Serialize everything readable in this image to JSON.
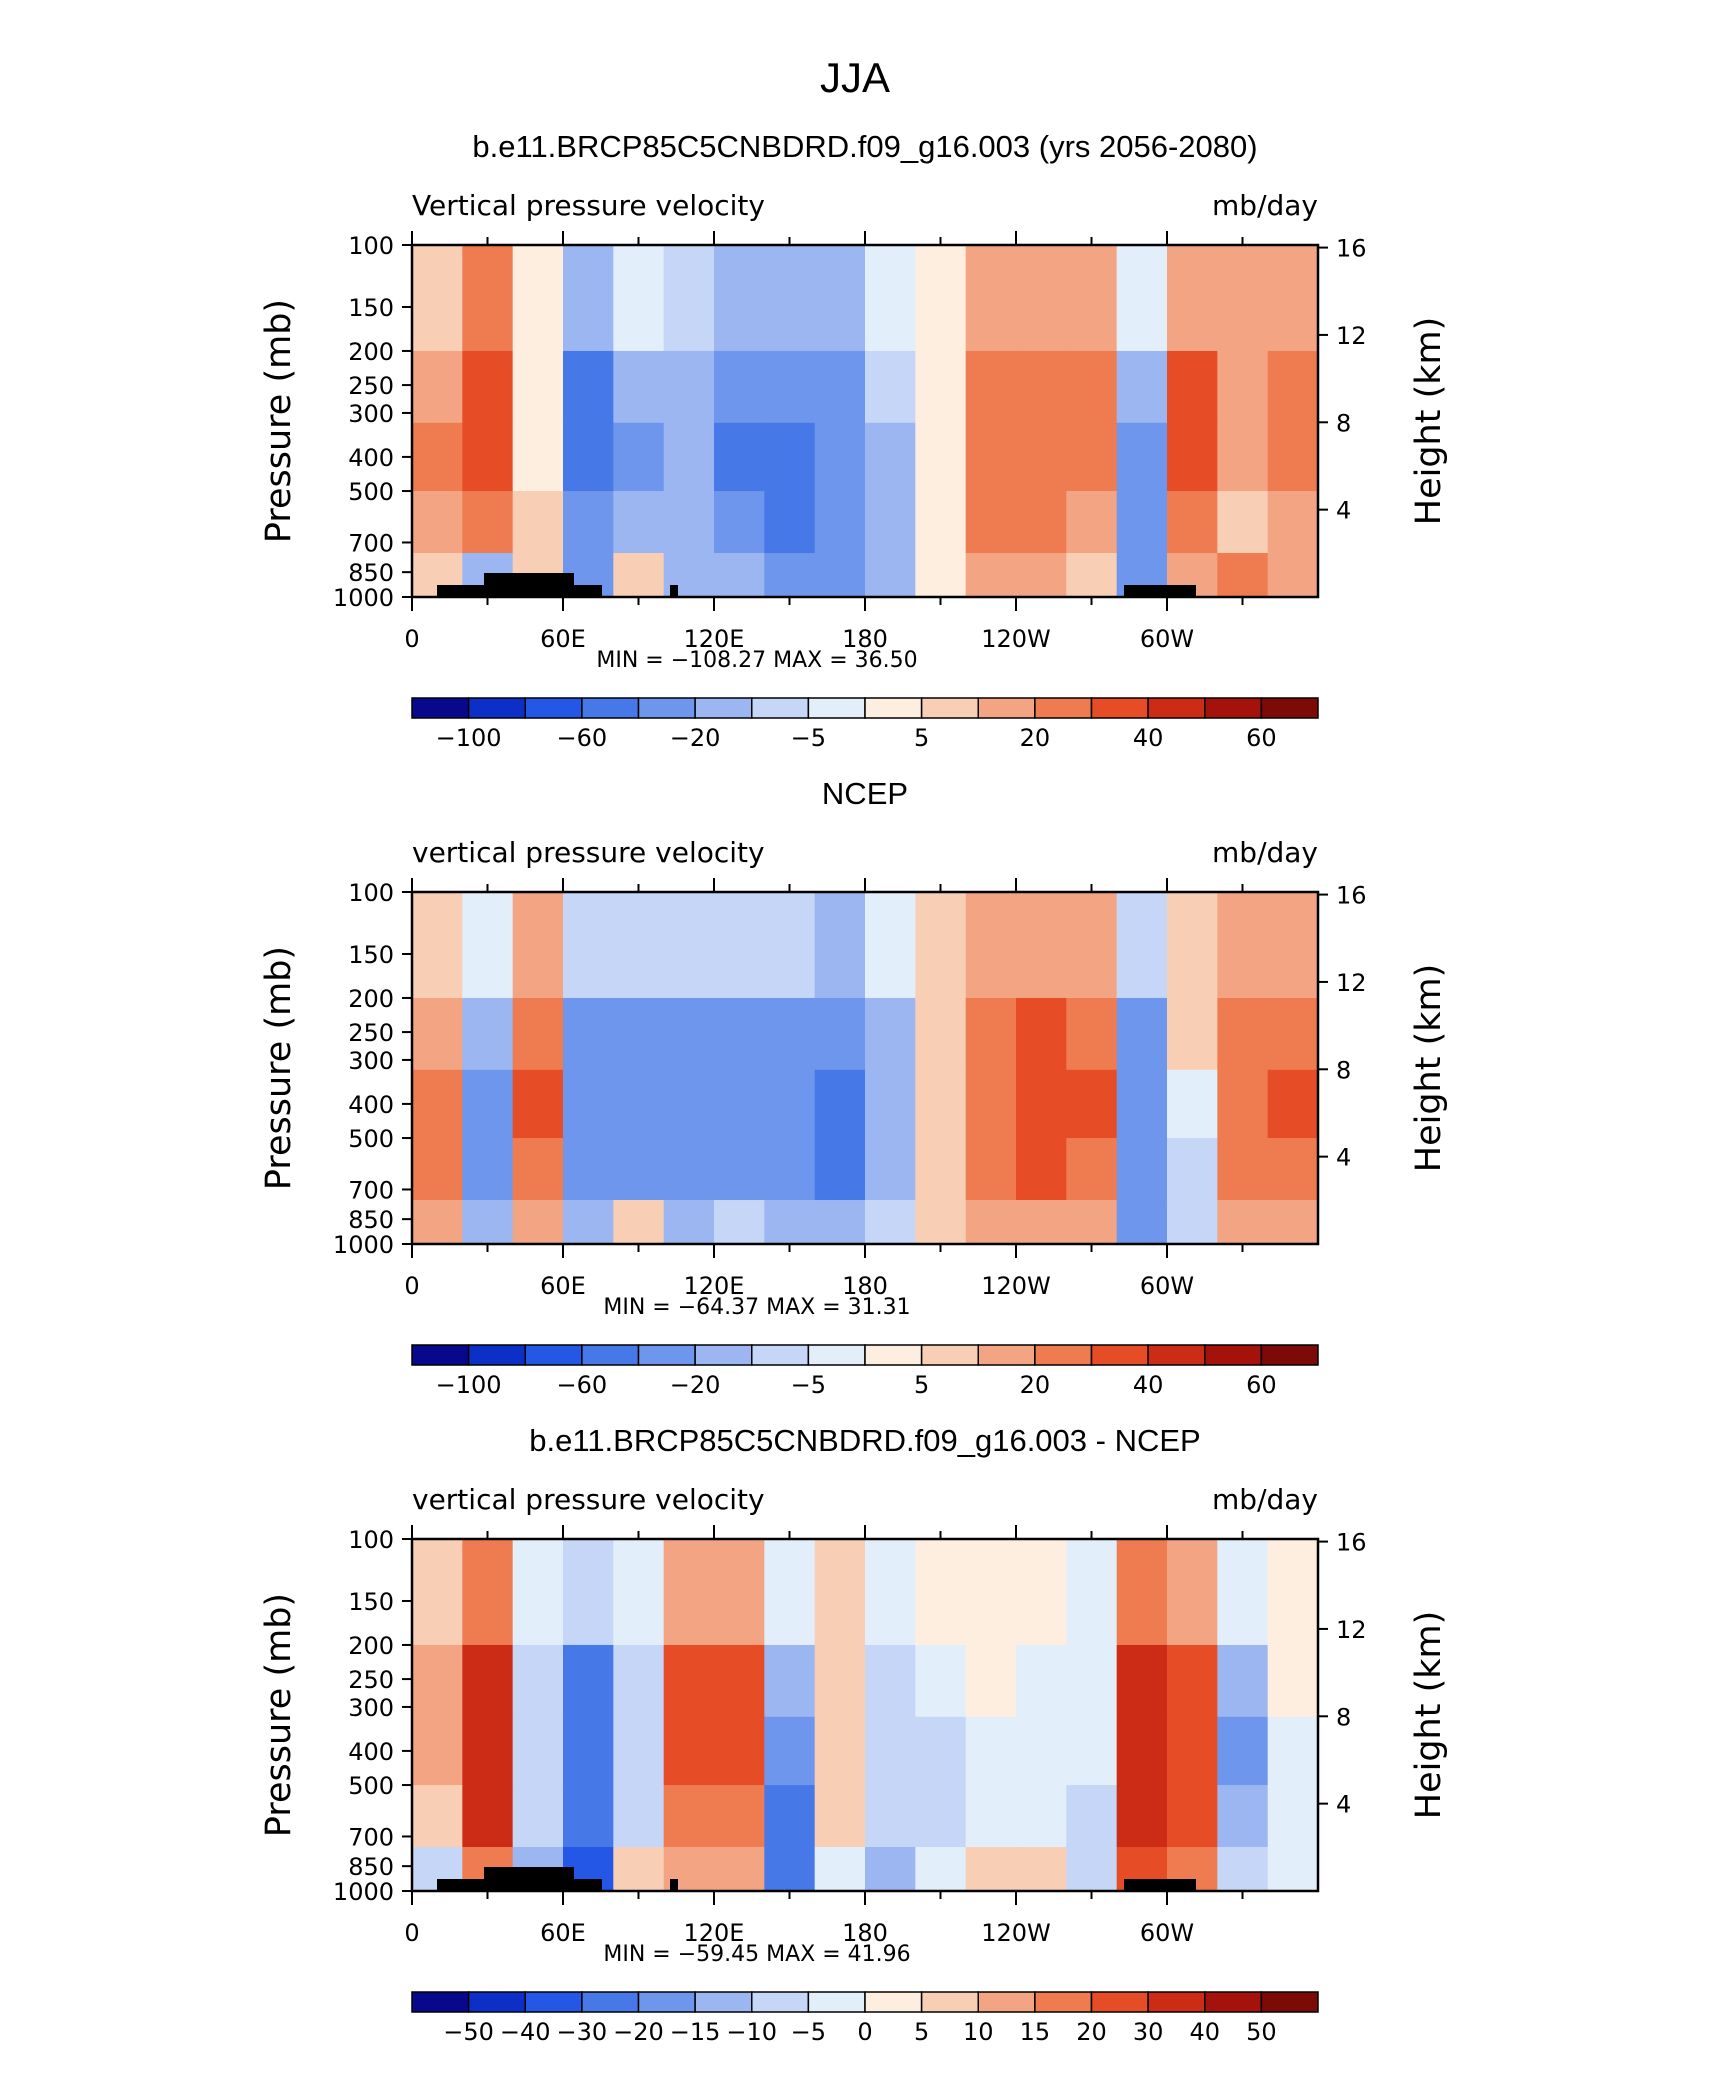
{
  "figure": {
    "season": "JJA",
    "colors": {
      "diverging_16": [
        "#08088c",
        "#0c2fc8",
        "#2557e6",
        "#4678e8",
        "#6e96ec",
        "#9bb6f0",
        "#c5d6f6",
        "#e3eefb",
        "#fdeee0",
        "#f8cfb5",
        "#f3a583",
        "#ef7b50",
        "#e64d26",
        "#cc2c16",
        "#a5120c",
        "#7c0a07"
      ]
    }
  },
  "panels": [
    {
      "id": "model",
      "title": "b.e11.BRCP85C5CNBDRD.f09_g16.003 (yrs 2056-2080)",
      "left_label": "Vertical pressure velocity",
      "right_label": "mb/day",
      "y_axis_label": "Pressure (mb)",
      "y2_axis_label": "Height (km)",
      "stats": "MIN = −108.27   MAX =   36.50",
      "show_topography": true,
      "colorbar_labels": [
        {
          "i": 1,
          "t": "−100"
        },
        {
          "i": 3,
          "t": "−60"
        },
        {
          "i": 5,
          "t": "−20"
        },
        {
          "i": 7,
          "t": "−5"
        },
        {
          "i": 9,
          "t": "5"
        },
        {
          "i": 11,
          "t": "20"
        },
        {
          "i": 13,
          "t": "40"
        },
        {
          "i": 15,
          "t": "60"
        }
      ]
    },
    {
      "id": "obs",
      "title": "NCEP",
      "left_label": "vertical pressure velocity",
      "right_label": "mb/day",
      "y_axis_label": "Pressure (mb)",
      "y2_axis_label": "Height (km)",
      "stats": "MIN =  −64.37   MAX =   31.31",
      "show_topography": false,
      "colorbar_labels": [
        {
          "i": 1,
          "t": "−100"
        },
        {
          "i": 3,
          "t": "−60"
        },
        {
          "i": 5,
          "t": "−20"
        },
        {
          "i": 7,
          "t": "−5"
        },
        {
          "i": 9,
          "t": "5"
        },
        {
          "i": 11,
          "t": "20"
        },
        {
          "i": 13,
          "t": "40"
        },
        {
          "i": 15,
          "t": "60"
        }
      ]
    },
    {
      "id": "diff",
      "title": "b.e11.BRCP85C5CNBDRD.f09_g16.003 - NCEP",
      "left_label": "vertical pressure velocity",
      "right_label": "mb/day",
      "y_axis_label": "Pressure (mb)",
      "y2_axis_label": "Height (km)",
      "stats": "MIN =  −59.45   MAX =   41.96",
      "show_topography": true,
      "colorbar_labels": [
        {
          "i": 1,
          "t": "−50"
        },
        {
          "i": 2,
          "t": "−40"
        },
        {
          "i": 3,
          "t": "−30"
        },
        {
          "i": 4,
          "t": "−20"
        },
        {
          "i": 5,
          "t": "−15"
        },
        {
          "i": 6,
          "t": "−10"
        },
        {
          "i": 7,
          "t": "−5"
        },
        {
          "i": 8,
          "t": "0"
        },
        {
          "i": 9,
          "t": "5"
        },
        {
          "i": 10,
          "t": "10"
        },
        {
          "i": 11,
          "t": "15"
        },
        {
          "i": 12,
          "t": "20"
        },
        {
          "i": 13,
          "t": "30"
        },
        {
          "i": 14,
          "t": "40"
        },
        {
          "i": 15,
          "t": "50"
        }
      ]
    }
  ],
  "chart_data": [
    {
      "type": "heatmap",
      "title": "b.e11.BRCP85C5CNBDRD.f09_g16.003 (yrs 2056-2080)",
      "variable": "Vertical pressure velocity",
      "units": "mb/day",
      "xlabel": "",
      "ylabel": "Pressure (mb)",
      "y2label": "Height (km)",
      "x_ticks": [
        "0",
        "60E",
        "120E",
        "180",
        "120W",
        "60W"
      ],
      "y_ticks": [
        100,
        150,
        200,
        250,
        300,
        400,
        500,
        700,
        850,
        1000
      ],
      "y2_ticks": [
        4,
        8,
        12,
        16
      ],
      "y_scale": "log",
      "ylim": [
        1000,
        100
      ],
      "min": -108.27,
      "max": 36.5,
      "value_grid": {
        "lon": [
          0,
          20,
          40,
          60,
          80,
          100,
          120,
          140,
          160,
          180,
          200,
          220,
          240,
          260,
          280,
          300,
          320,
          340
        ],
        "levels": [
          150,
          250,
          400,
          600,
          850
        ],
        "values": [
          [
            5,
            20,
            3,
            -15,
            -5,
            -10,
            -20,
            -20,
            -15,
            -5,
            3,
            15,
            15,
            15,
            -5,
            15,
            10,
            15
          ],
          [
            15,
            30,
            2,
            -60,
            -20,
            -15,
            -40,
            -40,
            -30,
            -10,
            2,
            20,
            25,
            20,
            -20,
            30,
            10,
            20
          ],
          [
            20,
            35,
            3,
            -55,
            -25,
            -20,
            -50,
            -50,
            -40,
            -20,
            3,
            25,
            25,
            20,
            -25,
            30,
            10,
            20
          ],
          [
            15,
            20,
            5,
            -40,
            -20,
            -20,
            -40,
            -45,
            -40,
            -20,
            3,
            20,
            20,
            15,
            -30,
            20,
            5,
            15
          ],
          [
            5,
            -20,
            5,
            -30,
            5,
            -20,
            -20,
            -30,
            -30,
            -15,
            3,
            10,
            10,
            5,
            -40,
            10,
            20,
            10
          ]
        ]
      }
    },
    {
      "type": "heatmap",
      "title": "NCEP",
      "variable": "vertical pressure velocity",
      "units": "mb/day",
      "xlabel": "",
      "ylabel": "Pressure (mb)",
      "y2label": "Height (km)",
      "x_ticks": [
        "0",
        "60E",
        "120E",
        "180",
        "120W",
        "60W"
      ],
      "y_ticks": [
        100,
        150,
        200,
        250,
        300,
        400,
        500,
        700,
        850,
        1000
      ],
      "y2_ticks": [
        4,
        8,
        12,
        16
      ],
      "y_scale": "log",
      "ylim": [
        1000,
        100
      ],
      "min": -64.37,
      "max": 31.31,
      "value_grid": {
        "lon": [
          0,
          20,
          40,
          60,
          80,
          100,
          120,
          140,
          160,
          180,
          200,
          220,
          240,
          260,
          280,
          300,
          320,
          340
        ],
        "levels": [
          150,
          250,
          400,
          600,
          850
        ],
        "values": [
          [
            5,
            -5,
            10,
            -10,
            -10,
            -10,
            -10,
            -10,
            -15,
            -5,
            5,
            10,
            15,
            10,
            -10,
            5,
            10,
            10
          ],
          [
            15,
            -15,
            25,
            -30,
            -30,
            -30,
            -30,
            -30,
            -40,
            -15,
            5,
            20,
            30,
            25,
            -30,
            5,
            20,
            25
          ],
          [
            20,
            -25,
            30,
            -40,
            -35,
            -40,
            -30,
            -35,
            -50,
            -20,
            5,
            25,
            35,
            30,
            -40,
            -5,
            25,
            30
          ],
          [
            20,
            -30,
            25,
            -35,
            -30,
            -30,
            -25,
            -30,
            -45,
            -20,
            5,
            20,
            30,
            25,
            -40,
            -10,
            20,
            25
          ],
          [
            10,
            -20,
            15,
            -20,
            5,
            -15,
            -10,
            -20,
            -20,
            -10,
            5,
            10,
            15,
            15,
            -25,
            -10,
            10,
            15
          ]
        ]
      }
    },
    {
      "type": "heatmap",
      "title": "b.e11.BRCP85C5CNBDRD.f09_g16.003 - NCEP",
      "variable": "vertical pressure velocity",
      "units": "mb/day",
      "xlabel": "",
      "ylabel": "Pressure (mb)",
      "y2label": "Height (km)",
      "x_ticks": [
        "0",
        "60E",
        "120E",
        "180",
        "120W",
        "60W"
      ],
      "y_ticks": [
        100,
        150,
        200,
        250,
        300,
        400,
        500,
        700,
        850,
        1000
      ],
      "y2_ticks": [
        4,
        8,
        12,
        16
      ],
      "y_scale": "log",
      "ylim": [
        1000,
        100
      ],
      "min": -59.45,
      "max": 41.96,
      "value_grid": {
        "lon": [
          0,
          20,
          40,
          60,
          80,
          100,
          120,
          140,
          160,
          180,
          200,
          220,
          240,
          260,
          280,
          300,
          320,
          340
        ],
        "levels": [
          150,
          250,
          400,
          600,
          850
        ],
        "values": [
          [
            5,
            15,
            -5,
            -10,
            -5,
            10,
            10,
            -5,
            5,
            -5,
            0,
            0,
            0,
            -5,
            15,
            10,
            -5,
            0
          ],
          [
            10,
            30,
            -10,
            -25,
            -10,
            20,
            20,
            -15,
            5,
            -10,
            -5,
            0,
            -5,
            -5,
            30,
            20,
            -15,
            0
          ],
          [
            10,
            35,
            -10,
            -30,
            -10,
            20,
            25,
            -20,
            5,
            -10,
            -10,
            -5,
            -5,
            -5,
            35,
            25,
            -20,
            -5
          ],
          [
            5,
            30,
            -10,
            -30,
            -10,
            15,
            15,
            -25,
            5,
            -10,
            -10,
            -5,
            -5,
            -10,
            35,
            20,
            -15,
            -5
          ],
          [
            -10,
            15,
            -15,
            -35,
            5,
            10,
            10,
            -30,
            -5,
            -15,
            -5,
            5,
            5,
            -10,
            25,
            15,
            -10,
            -5
          ]
        ]
      }
    }
  ]
}
